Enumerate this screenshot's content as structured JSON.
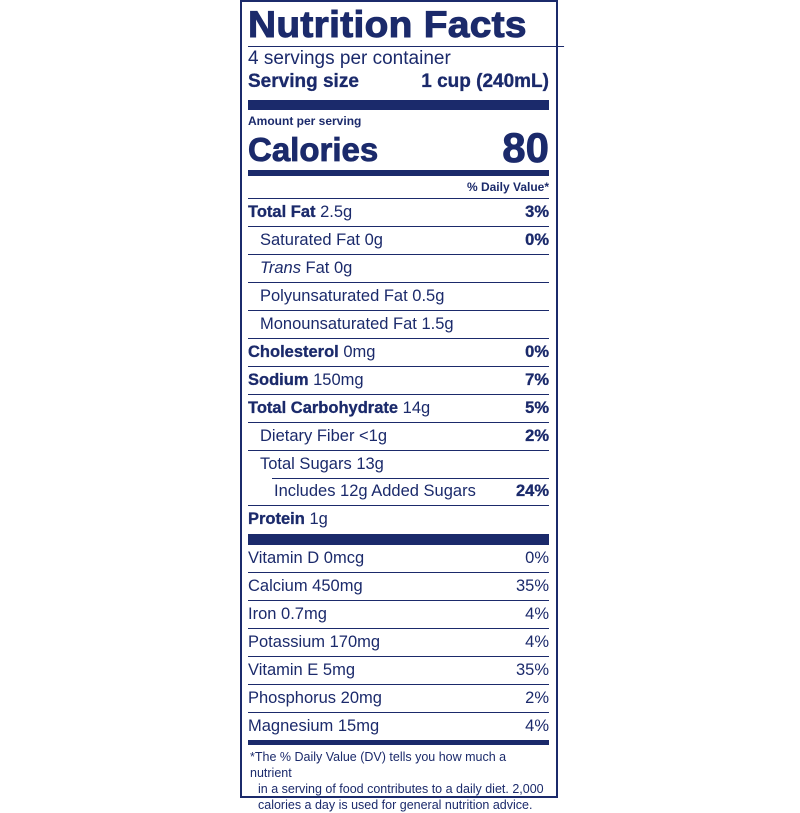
{
  "title": "Nutrition Facts",
  "servings_per_container": "4 servings per container",
  "serving_size_label": "Serving size",
  "serving_size_value": "1 cup (240mL)",
  "amount_per_serving": "Amount per serving",
  "calories_label": "Calories",
  "calories_value": "80",
  "daily_value_header": "% Daily Value*",
  "nutrients": [
    {
      "name": "Total Fat",
      "amount": "2.5g",
      "dv": "3%",
      "bold": true,
      "indent": 0
    },
    {
      "name": "Saturated Fat",
      "amount": "0g",
      "dv": "0%",
      "bold": false,
      "indent": 1
    },
    {
      "name_italic": "Trans",
      "name": "Fat",
      "amount": "0g",
      "dv": "",
      "bold": false,
      "indent": 1
    },
    {
      "name": "Polyunsaturated Fat",
      "amount": "0.5g",
      "dv": "",
      "bold": false,
      "indent": 1
    },
    {
      "name": "Monounsaturated Fat",
      "amount": "1.5g",
      "dv": "",
      "bold": false,
      "indent": 1
    },
    {
      "name": "Cholesterol",
      "amount": "0mg",
      "dv": "0%",
      "bold": true,
      "indent": 0
    },
    {
      "name": "Sodium",
      "amount": "150mg",
      "dv": "7%",
      "bold": true,
      "indent": 0
    },
    {
      "name": "Total Carbohydrate",
      "amount": "14g",
      "dv": "5%",
      "bold": true,
      "indent": 0
    },
    {
      "name": "Dietary Fiber",
      "amount": "<1g",
      "dv": "2%",
      "bold": false,
      "indent": 1
    },
    {
      "name": "Total Sugars",
      "amount": "13g",
      "dv": "",
      "bold": false,
      "indent": 1
    },
    {
      "name": "Includes 12g Added Sugars",
      "amount": "",
      "dv": "24%",
      "bold": false,
      "indent": 2
    },
    {
      "name": "Protein",
      "amount": "1g",
      "dv": "",
      "bold": true,
      "indent": 0
    }
  ],
  "vitamins": [
    {
      "name": "Vitamin D 0mcg",
      "dv": "0%"
    },
    {
      "name": "Calcium 450mg",
      "dv": "35%"
    },
    {
      "name": "Iron 0.7mg",
      "dv": "4%"
    },
    {
      "name": "Potassium 170mg",
      "dv": "4%"
    },
    {
      "name": "Vitamin E 5mg",
      "dv": "35%"
    },
    {
      "name": "Phosphorus 20mg",
      "dv": "2%"
    },
    {
      "name": "Magnesium 15mg",
      "dv": "4%"
    }
  ],
  "footnote": [
    "*The % Daily Value (DV) tells you how much a nutrient",
    "in a serving of food contributes to a daily diet. 2,000",
    "calories a day is used for general nutrition advice."
  ],
  "colors": {
    "ink": "#1b2a6b",
    "background": "#ffffff"
  }
}
